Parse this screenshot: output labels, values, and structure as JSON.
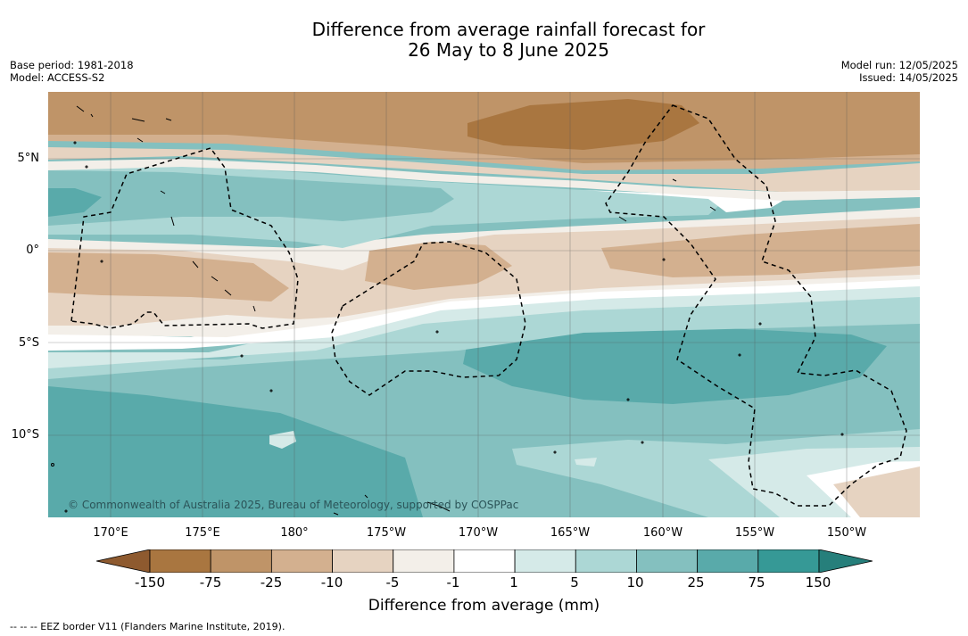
{
  "title_line1": "Difference from average rainfall forecast for",
  "title_line2": "26 May to 8 June 2025",
  "base_period": "Base period: 1981-2018",
  "model": "Model: ACCESS-S2",
  "model_run": "Model run: 12/05/2025",
  "issued": "Issued: 14/05/2025",
  "lat_labels": [
    "5°N",
    "0°",
    "5°S",
    "10°S"
  ],
  "lon_labels": [
    "170°E",
    "175°E",
    "180°",
    "175°W",
    "170°W",
    "165°W",
    "160°W",
    "155°W",
    "150°W"
  ],
  "copyright": "© Commonwealth of Australia 2025, Bureau of Meteorology, supported by COSPPac",
  "colorbar": {
    "ticks": [
      "-150",
      "-75",
      "-25",
      "-10",
      "-5",
      "-1",
      "1",
      "5",
      "10",
      "25",
      "75",
      "150"
    ],
    "colors": [
      "#8e5a2f",
      "#a97640",
      "#bf9468",
      "#d3b08f",
      "#e6d3c1",
      "#f3efe9",
      "#ffffff",
      "#d5eae8",
      "#acd7d5",
      "#84c0bf",
      "#59aaaa",
      "#369996",
      "#267f7b"
    ],
    "label": "Difference from average (mm)"
  },
  "footer": "--  --  -- EEZ border V11 (Flanders Marine Institute, 2019)."
}
